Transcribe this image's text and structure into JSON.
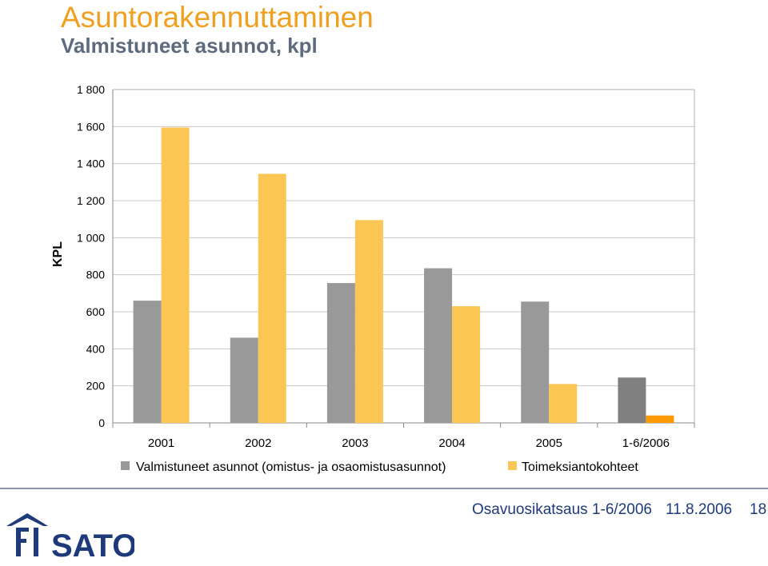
{
  "header": {
    "title": "Asuntorakennuttaminen",
    "subtitle": "Valmistuneet asunnot, kpl"
  },
  "chart_data": {
    "type": "bar",
    "ylabel": "KPL",
    "ylim": [
      0,
      1800
    ],
    "yticks": [
      0,
      200,
      400,
      600,
      800,
      1000,
      1200,
      1400,
      1600,
      1800
    ],
    "ytick_labels": [
      "0",
      "200",
      "400",
      "600",
      "800",
      "1 000",
      "1 200",
      "1 400",
      "1 600",
      "1 800"
    ],
    "categories": [
      "2001",
      "2002",
      "2003",
      "2004",
      "2005",
      "1-6/2006"
    ],
    "grid": true,
    "legend_position": "bottom",
    "series": [
      {
        "name": "Valmistuneet asunnot (omistus- ja osaomistusasunnot)",
        "values": [
          660,
          460,
          755,
          835,
          655,
          245
        ],
        "color": "#999999",
        "last_color": "#808080"
      },
      {
        "name": "Toimeksiantokohteet",
        "values": [
          1595,
          1345,
          1095,
          630,
          210,
          40
        ],
        "color": "#fcc654",
        "last_color": "#fc9a05"
      }
    ]
  },
  "footer": {
    "presentation": "Osavuosikatsaus 1-6/2006",
    "date": "11.8.2006",
    "page": "18",
    "logo_text": "SATO",
    "accent_color": "#1f3a7a"
  }
}
